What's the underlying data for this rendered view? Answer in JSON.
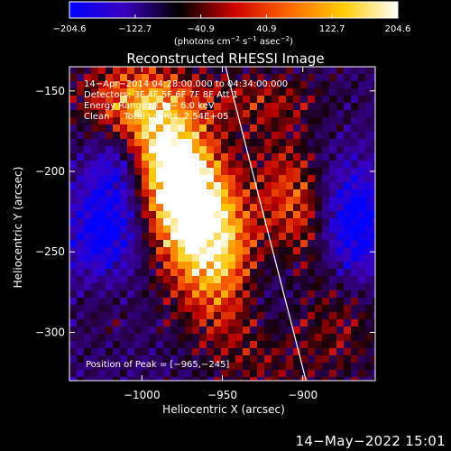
{
  "chart_data": {
    "type": "heatmap",
    "title": "Reconstructed RHESSI Image",
    "xlabel": "Heliocentric X (arcsec)",
    "ylabel": "Heliocentric Y (arcsec)",
    "xlim": [
      -1045,
      -855
    ],
    "ylim": [
      -330,
      -135
    ],
    "xticks": [
      -1000,
      -950,
      -900
    ],
    "xtick_labels": [
      "−1000",
      "−950",
      "−900"
    ],
    "yticks": [
      -150,
      -200,
      -250,
      -300
    ],
    "ytick_labels": [
      "−150",
      "−200",
      "−250",
      "−300"
    ],
    "colorbar": {
      "range": [
        -204.6,
        204.6
      ],
      "ticks": [
        "−204.6",
        "−122.7",
        "−40.9",
        "40.9",
        "122.7",
        "204.6"
      ],
      "units_prefix": "(photons cm",
      "units_sup1": "−2",
      "units_mid1": " s",
      "units_sup2": "−1",
      "units_mid2": " asec",
      "units_sup3": "−2",
      "units_suffix": ")",
      "colors": [
        "#0000ff",
        "#3a00c0",
        "#000000",
        "#cc0000",
        "#ff6600",
        "#ffcc00",
        "#ffffff"
      ]
    },
    "annotations": [
      "14−Apr−2014 04:28:00.000 to 04:34:00.000",
      "Detectors: 3F 4F 5F 6F 7F 8F Att 1",
      "Energy Range: 3.0 − 6.0 keV",
      "Clean     Total counts: 2.54E+05"
    ],
    "peak_label": "Position of Peak = [−965,−245]",
    "peak": [
      -965,
      -245
    ],
    "limb_line": [
      [
        -948,
        -135
      ],
      [
        -898,
        -330
      ]
    ],
    "limb_color": "#ffffff"
  },
  "footer": {
    "timestamp": "14−May−2022 15:01"
  }
}
